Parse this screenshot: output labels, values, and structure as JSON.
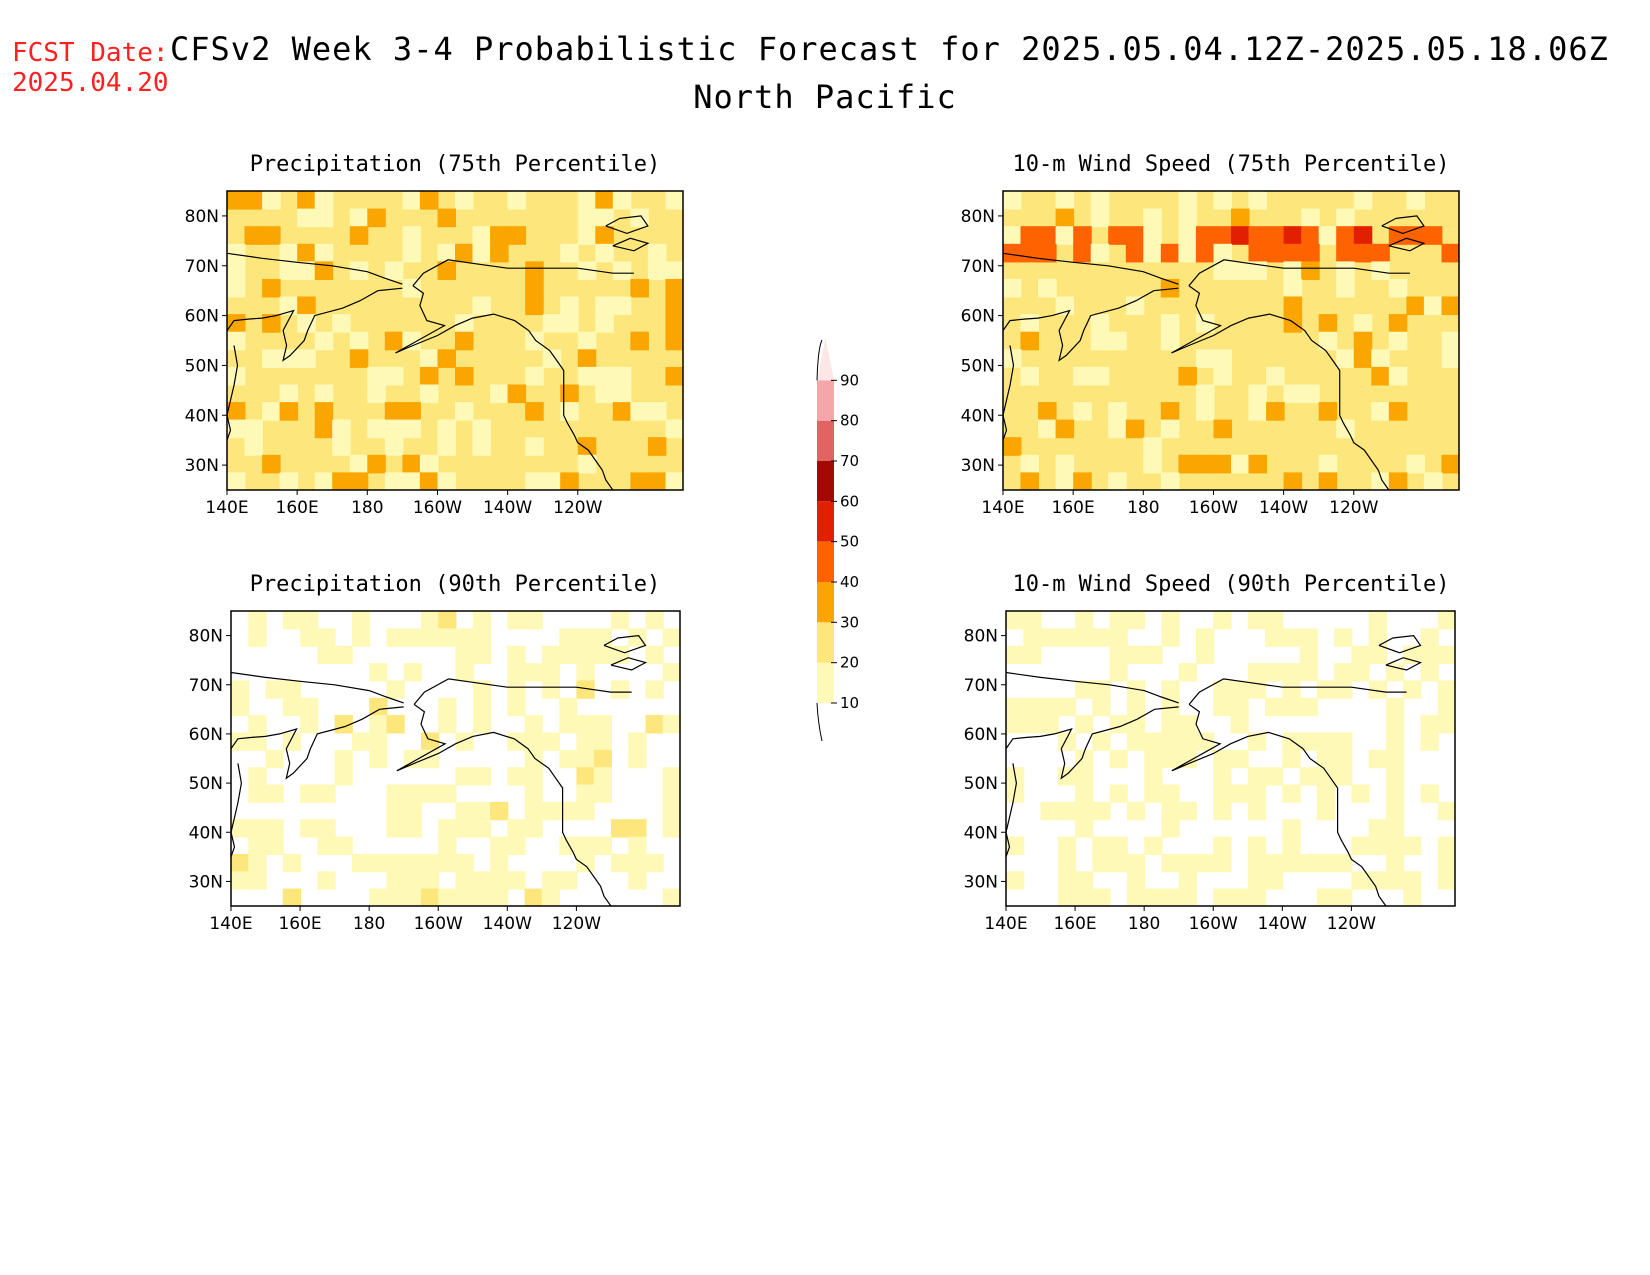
{
  "header": {
    "fcst_label": "FCST Date:",
    "fcst_date": "2025.04.20",
    "title": "CFSv2 Week 3-4 Probabilistic Forecast for 2025.05.04.12Z-2025.05.18.06Z",
    "region": "North Pacific"
  },
  "panels": [
    {
      "title": "Precipitation (75th Percentile)"
    },
    {
      "title": "10-m Wind Speed (75th Percentile)"
    },
    {
      "title": "Precipitation (90th Percentile)"
    },
    {
      "title": "10-m Wind Speed (90th Percentile)"
    }
  ],
  "axes": {
    "lon_labels": [
      "140E",
      "160E",
      "180",
      "160W",
      "140W",
      "120W"
    ],
    "lat_labels": [
      "80N",
      "70N",
      "60N",
      "50N",
      "40N",
      "30N"
    ]
  },
  "colorbar": {
    "levels": [
      "10",
      "20",
      "30",
      "40",
      "50",
      "60",
      "70",
      "80",
      "90"
    ],
    "colors": [
      "#fff9b8",
      "#fde67c",
      "#fba500",
      "#ff6200",
      "#e21f00",
      "#a00a00",
      "#e06462",
      "#f4a6a8",
      "#fde6e6"
    ]
  },
  "land_color": "#ffffff",
  "coast_color": "#000000"
}
